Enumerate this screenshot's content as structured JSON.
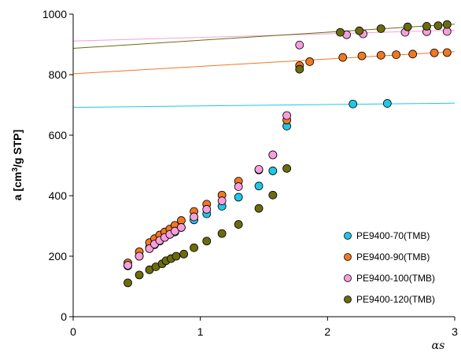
{
  "chart_data": {
    "type": "scatter",
    "title": "",
    "xlabel": "αs",
    "ylabel": "a [cm3/g STP]",
    "ylabel_parts": {
      "prefix": "a [cm",
      "sup": "3",
      "suffix": "/g STP]"
    },
    "xlim": [
      0,
      3
    ],
    "ylim": [
      0,
      1000
    ],
    "xticks": [
      "0",
      "1",
      "2",
      "3"
    ],
    "yticks": [
      "0",
      "200",
      "400",
      "600",
      "800",
      "1000"
    ],
    "grid": false,
    "legend_position": "bottom-right",
    "series": [
      {
        "name": "PE9400-70(TMB)",
        "color": "#1ec8e6",
        "x": [
          0.43,
          0.52,
          0.6,
          0.64,
          0.68,
          0.72,
          0.76,
          0.8,
          0.85,
          0.95,
          1.05,
          1.17,
          1.3,
          1.46,
          1.57,
          1.68,
          2.2,
          2.47
        ],
        "y": [
          168,
          200,
          228,
          238,
          250,
          262,
          272,
          280,
          295,
          320,
          340,
          365,
          395,
          432,
          482,
          630,
          703,
          705
        ],
        "fit": {
          "x": [
            0,
            3
          ],
          "y": [
            692,
            706
          ]
        }
      },
      {
        "name": "PE9400-90(TMB)",
        "color": "#f07820",
        "x": [
          0.43,
          0.52,
          0.6,
          0.64,
          0.68,
          0.72,
          0.76,
          0.8,
          0.85,
          0.95,
          1.05,
          1.17,
          1.3,
          1.46,
          1.57,
          1.68,
          1.78,
          1.86,
          2.12,
          2.27,
          2.42,
          2.54,
          2.67,
          2.84,
          2.94
        ],
        "y": [
          178,
          215,
          245,
          258,
          270,
          280,
          290,
          302,
          318,
          348,
          372,
          402,
          448,
          485,
          535,
          650,
          830,
          843,
          857,
          862,
          864,
          866,
          868,
          872,
          873
        ],
        "fit": {
          "x": [
            0,
            3
          ],
          "y": [
            803,
            876
          ]
        }
      },
      {
        "name": "PE9400-100(TMB)",
        "color": "#f5a0dc",
        "x": [
          0.43,
          0.52,
          0.6,
          0.64,
          0.68,
          0.72,
          0.76,
          0.8,
          0.85,
          0.95,
          1.05,
          1.17,
          1.3,
          1.46,
          1.57,
          1.68,
          1.78,
          2.15,
          2.28,
          2.61,
          2.78,
          2.94
        ],
        "y": [
          170,
          200,
          225,
          240,
          252,
          262,
          272,
          283,
          295,
          330,
          355,
          383,
          430,
          487,
          535,
          665,
          898,
          932,
          935,
          940,
          942,
          943
        ],
        "fit": {
          "x": [
            0,
            3
          ],
          "y": [
            911,
            947
          ]
        }
      },
      {
        "name": "PE9400-120(TMB)",
        "color": "#6b6b10",
        "x": [
          0.43,
          0.52,
          0.6,
          0.65,
          0.7,
          0.73,
          0.77,
          0.81,
          0.87,
          0.95,
          1.05,
          1.17,
          1.3,
          1.46,
          1.57,
          1.68,
          1.78,
          2.1,
          2.25,
          2.42,
          2.63,
          2.78,
          2.87,
          2.94
        ],
        "y": [
          112,
          138,
          155,
          165,
          175,
          185,
          192,
          200,
          207,
          228,
          250,
          275,
          305,
          358,
          402,
          490,
          818,
          940,
          945,
          952,
          958,
          960,
          962,
          966
        ],
        "fit": {
          "x": [
            0,
            3
          ],
          "y": [
            887,
            967
          ]
        }
      }
    ]
  }
}
